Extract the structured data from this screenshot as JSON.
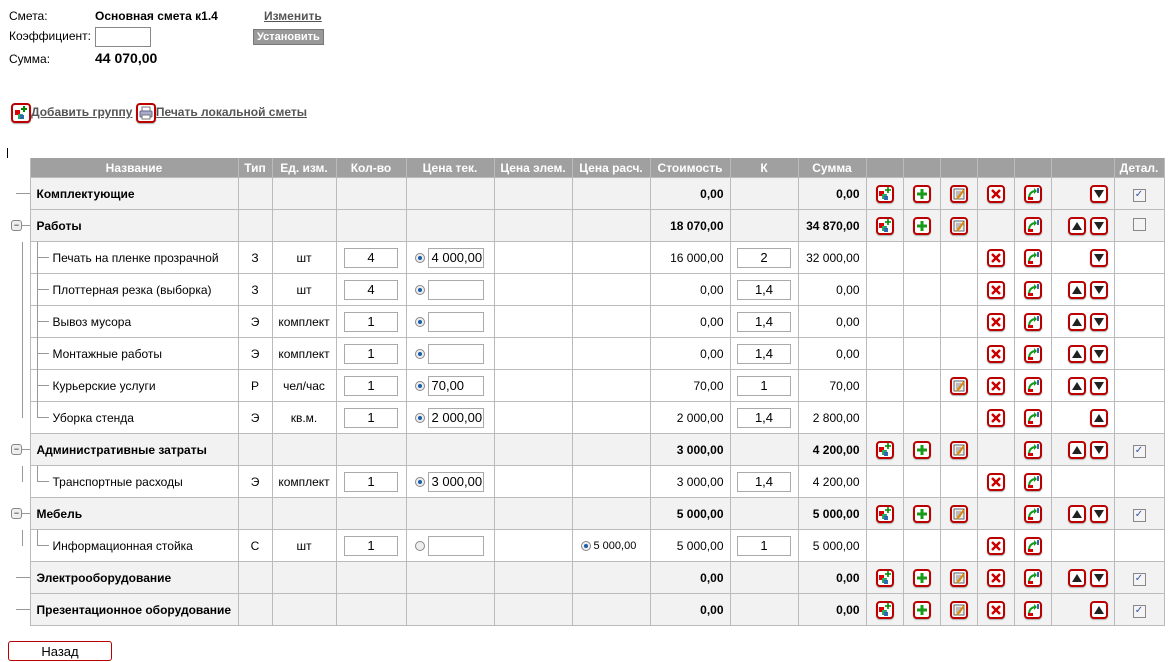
{
  "header": {
    "estimate_label": "Смета:",
    "estimate_name": "Основная смета к1.4",
    "change_link": "Изменить",
    "coef_label": "Коэффициент:",
    "coef_value": "",
    "set_button": "Установить",
    "sum_label": "Сумма:",
    "sum_value": "44 070,00"
  },
  "actions": {
    "add_group": "Добавить группу",
    "print": "Печать локальной сметы"
  },
  "columns": [
    "Название",
    "Тип",
    "Ед. изм.",
    "Кол-во",
    "Цена тек.",
    "Цена элем.",
    "Цена расч.",
    "Стоимость",
    "К",
    "Сумма",
    "",
    "",
    "",
    "",
    "",
    "",
    "Детал."
  ],
  "rows": [
    {
      "kind": "group",
      "name": "Комплектующие",
      "cost": "0,00",
      "sum": "0,00",
      "icons": [
        "addgroup",
        "add",
        "edit",
        "del",
        "move"
      ],
      "up": false,
      "down": true,
      "detail": "checked"
    },
    {
      "kind": "group",
      "name": "Работы",
      "cost": "18 070,00",
      "sum": "34 870,00",
      "icons": [
        "addgroup",
        "add",
        "edit",
        "",
        "move"
      ],
      "up": true,
      "down": true,
      "detail": "unchecked",
      "expanded": true
    },
    {
      "kind": "item",
      "name": "Печать на пленке прозрачной",
      "type": "З",
      "unit": "шт",
      "qty": "4",
      "price_radio": true,
      "price": "4 000,00",
      "cost": "16 000,00",
      "k": "2",
      "sum": "32 000,00",
      "icons": [
        "",
        "",
        "",
        "del",
        "move"
      ],
      "up": false,
      "down": true
    },
    {
      "kind": "item",
      "name": "Плоттерная резка (выборка)",
      "type": "З",
      "unit": "шт",
      "qty": "4",
      "price_radio": true,
      "price": "",
      "cost": "0,00",
      "k": "1,4",
      "sum": "0,00",
      "icons": [
        "",
        "",
        "",
        "del",
        "move"
      ],
      "up": true,
      "down": true
    },
    {
      "kind": "item",
      "name": "Вывоз мусора",
      "type": "Э",
      "unit": "комплект",
      "qty": "1",
      "price_radio": true,
      "price": "",
      "cost": "0,00",
      "k": "1,4",
      "sum": "0,00",
      "icons": [
        "",
        "",
        "",
        "del",
        "move"
      ],
      "up": true,
      "down": true
    },
    {
      "kind": "item",
      "name": "Монтажные работы",
      "type": "Э",
      "unit": "комплект",
      "qty": "1",
      "price_radio": true,
      "price": "",
      "cost": "0,00",
      "k": "1,4",
      "sum": "0,00",
      "icons": [
        "",
        "",
        "",
        "del",
        "move"
      ],
      "up": true,
      "down": true
    },
    {
      "kind": "item",
      "name": "Курьерские услуги",
      "type": "Р",
      "unit": "чел/час",
      "qty": "1",
      "price_radio": true,
      "price": "70,00",
      "cost": "70,00",
      "k": "1",
      "sum": "70,00",
      "icons": [
        "",
        "",
        "edit",
        "del",
        "move"
      ],
      "up": true,
      "down": true
    },
    {
      "kind": "item",
      "name": "Уборка стенда",
      "type": "Э",
      "unit": "кв.м.",
      "qty": "1",
      "price_radio": true,
      "price": "2 000,00",
      "cost": "2 000,00",
      "k": "1,4",
      "sum": "2 800,00",
      "icons": [
        "",
        "",
        "",
        "del",
        "move"
      ],
      "up": true,
      "down": false,
      "last": true
    },
    {
      "kind": "group",
      "name": "Административные затраты",
      "cost": "3 000,00",
      "sum": "4 200,00",
      "icons": [
        "addgroup",
        "add",
        "edit",
        "",
        "move"
      ],
      "up": true,
      "down": true,
      "detail": "checked",
      "expanded": true
    },
    {
      "kind": "item",
      "name": "Транспортные расходы",
      "type": "Э",
      "unit": "комплект",
      "qty": "1",
      "price_radio": true,
      "price": "3 000,00",
      "cost": "3 000,00",
      "k": "1,4",
      "sum": "4 200,00",
      "icons": [
        "",
        "",
        "",
        "del",
        "move"
      ],
      "up": false,
      "down": false,
      "last": true
    },
    {
      "kind": "group",
      "name": "Мебель",
      "cost": "5 000,00",
      "sum": "5 000,00",
      "icons": [
        "addgroup",
        "add",
        "edit",
        "",
        "move"
      ],
      "up": true,
      "down": true,
      "detail": "checked",
      "expanded": true
    },
    {
      "kind": "item",
      "name": "Информационная стойка",
      "type": "С",
      "unit": "шт",
      "qty": "1",
      "price_radio": false,
      "price": "",
      "calc_price": "5 000,00",
      "cost": "5 000,00",
      "k": "1",
      "sum": "5 000,00",
      "icons": [
        "",
        "",
        "",
        "del",
        "move"
      ],
      "up": false,
      "down": false,
      "last": true
    },
    {
      "kind": "group",
      "name": "Электрооборудование",
      "cost": "0,00",
      "sum": "0,00",
      "icons": [
        "addgroup",
        "add",
        "edit",
        "del",
        "move"
      ],
      "up": true,
      "down": true,
      "detail": "checked"
    },
    {
      "kind": "group",
      "name": "Презентационное оборудование",
      "cost": "0,00",
      "sum": "0,00",
      "icons": [
        "addgroup",
        "add",
        "edit",
        "del",
        "move"
      ],
      "up": true,
      "down": false,
      "detail": "checked"
    }
  ],
  "back_button": "Назад",
  "colors": {
    "header_bg": "#a0a0a0",
    "icon_border": "#bb0000",
    "group_bg": "#f2f2f2"
  }
}
